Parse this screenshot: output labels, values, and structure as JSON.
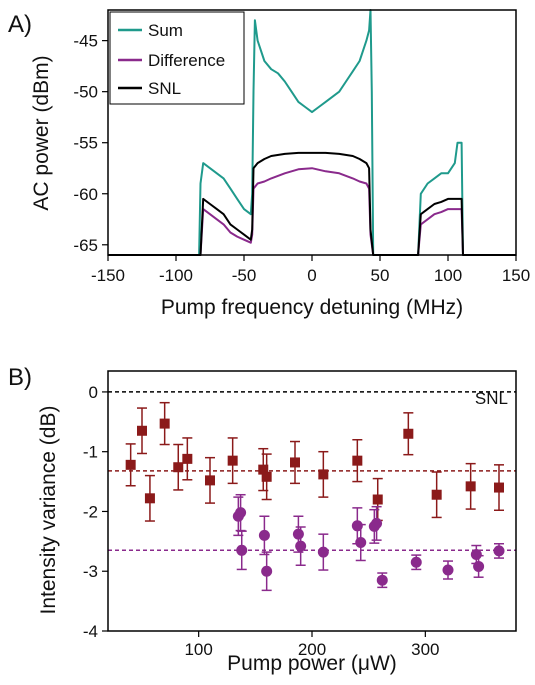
{
  "chart_data": [
    {
      "type": "line",
      "panel_label": "A)",
      "xlabel": "Pump frequency detuning (MHz)",
      "ylabel": "AC power (dBm)",
      "xlim": [
        -150,
        150
      ],
      "ylim": [
        -66,
        -42
      ],
      "xticks": [
        -150,
        -100,
        -50,
        0,
        50,
        100,
        150
      ],
      "yticks": [
        -45,
        -50,
        -55,
        -60,
        -65
      ],
      "legend_position": "top-left",
      "colors": {
        "sum": "#1f9a8c",
        "difference": "#8a2a8c",
        "snl": "#000000"
      },
      "series": [
        {
          "name": "Sum",
          "color": "#1f9a8c",
          "x": [
            -150,
            -83,
            -82,
            -80,
            -75,
            -70,
            -65,
            -60,
            -55,
            -50,
            -45,
            -44,
            -43,
            -42,
            -40,
            -35,
            -30,
            -25,
            -20,
            -15,
            -10,
            -5,
            0,
            5,
            10,
            15,
            20,
            25,
            30,
            35,
            40,
            42,
            43,
            44,
            45,
            50,
            60,
            70,
            78,
            80,
            85,
            90,
            95,
            100,
            105,
            107,
            110,
            111,
            150
          ],
          "y": [
            -66,
            -66,
            -59,
            -57,
            -57.5,
            -58,
            -58.5,
            -59.5,
            -60.5,
            -61.5,
            -62,
            -60,
            -50,
            -43,
            -45,
            -47,
            -47.8,
            -48.2,
            -49,
            -50,
            -51,
            -51.5,
            -52,
            -51.5,
            -51,
            -50.5,
            -50,
            -49,
            -48,
            -47,
            -45,
            -44,
            -42,
            -50,
            -66,
            -66,
            -66,
            -66,
            -66,
            -60,
            -59,
            -58.5,
            -58,
            -58,
            -57,
            -55,
            -55,
            -66,
            -66
          ]
        },
        {
          "name": "Difference",
          "color": "#8a2a8c",
          "x": [
            -150,
            -82,
            -80,
            -75,
            -70,
            -65,
            -60,
            -55,
            -50,
            -45,
            -44,
            -43,
            -40,
            -35,
            -30,
            -20,
            -10,
            0,
            10,
            20,
            30,
            35,
            40,
            42,
            43,
            45,
            50,
            78,
            80,
            85,
            90,
            95,
            100,
            105,
            110,
            111,
            150
          ],
          "y": [
            -66,
            -66,
            -61.5,
            -62,
            -62.5,
            -63,
            -63.8,
            -64.2,
            -64.5,
            -64.8,
            -64,
            -59.5,
            -59,
            -58.8,
            -58.5,
            -58,
            -57.6,
            -57.5,
            -57.8,
            -58,
            -58.5,
            -58.8,
            -59,
            -59.5,
            -64,
            -66,
            -66,
            -66,
            -63,
            -62.5,
            -62,
            -61.8,
            -61.5,
            -61.5,
            -61.5,
            -66,
            -66
          ]
        },
        {
          "name": "SNL",
          "color": "#000000",
          "x": [
            -150,
            -82,
            -80,
            -75,
            -70,
            -65,
            -60,
            -55,
            -50,
            -45,
            -44,
            -43,
            -40,
            -35,
            -30,
            -20,
            -10,
            0,
            10,
            20,
            30,
            35,
            40,
            42,
            43,
            45,
            50,
            78,
            80,
            85,
            90,
            95,
            100,
            105,
            110,
            111,
            150
          ],
          "y": [
            -66,
            -66,
            -60.5,
            -61,
            -61.5,
            -62,
            -63,
            -63.5,
            -64,
            -64.5,
            -63.5,
            -57.5,
            -57,
            -56.6,
            -56.3,
            -56.1,
            -56,
            -56,
            -56,
            -56.1,
            -56.3,
            -56.6,
            -57,
            -57.5,
            -63.5,
            -66,
            -66,
            -66,
            -62,
            -61.5,
            -61,
            -60.8,
            -60.5,
            -60.5,
            -60.5,
            -66,
            -66
          ]
        }
      ]
    },
    {
      "type": "scatter",
      "panel_label": "B)",
      "xlabel": "Pump power (μW)",
      "ylabel": "Intensity variance (dB)",
      "xlim": [
        20,
        380
      ],
      "ylim": [
        -4,
        0.35
      ],
      "xticks": [
        100,
        200,
        300
      ],
      "yticks": [
        0,
        -1,
        -2,
        -3,
        -4
      ],
      "annotation": "SNL",
      "reference_lines": [
        {
          "y": 0,
          "color": "#000000"
        },
        {
          "y": -1.32,
          "color": "#8b1a1a"
        },
        {
          "y": -2.65,
          "color": "#8a2a8c"
        }
      ],
      "series": [
        {
          "color": "#8b1a1a",
          "marker": "square",
          "x": [
            40,
            50,
            57,
            70,
            82,
            90,
            110,
            130,
            157,
            160,
            185,
            210,
            240,
            258,
            285,
            310,
            340,
            365
          ],
          "y": [
            -1.22,
            -0.65,
            -1.78,
            -0.53,
            -1.26,
            -1.12,
            -1.48,
            -1.15,
            -1.3,
            -1.42,
            -1.18,
            -1.38,
            -1.15,
            -1.8,
            -0.7,
            -1.72,
            -1.58,
            -1.6
          ],
          "err": [
            0.35,
            0.38,
            0.38,
            0.35,
            0.38,
            0.35,
            0.38,
            0.38,
            0.35,
            0.38,
            0.35,
            0.38,
            0.35,
            0.35,
            0.35,
            0.38,
            0.38,
            0.38
          ]
        },
        {
          "color": "#8a2a8c",
          "marker": "circle",
          "x": [
            135,
            137,
            138,
            158,
            160,
            188,
            190,
            210,
            240,
            243,
            255,
            257,
            262,
            292,
            320,
            345,
            347,
            365
          ],
          "y": [
            -2.08,
            -2.02,
            -2.65,
            -2.4,
            -3.0,
            -2.38,
            -2.58,
            -2.68,
            -2.24,
            -2.52,
            -2.25,
            -2.2,
            -3.15,
            -2.85,
            -2.98,
            -2.72,
            -2.92,
            -2.66
          ],
          "err": [
            0.32,
            0.3,
            0.32,
            0.32,
            0.32,
            0.3,
            0.32,
            0.3,
            0.3,
            0.3,
            0.28,
            0.28,
            0.12,
            0.12,
            0.15,
            0.15,
            0.18,
            0.12
          ]
        }
      ]
    }
  ]
}
